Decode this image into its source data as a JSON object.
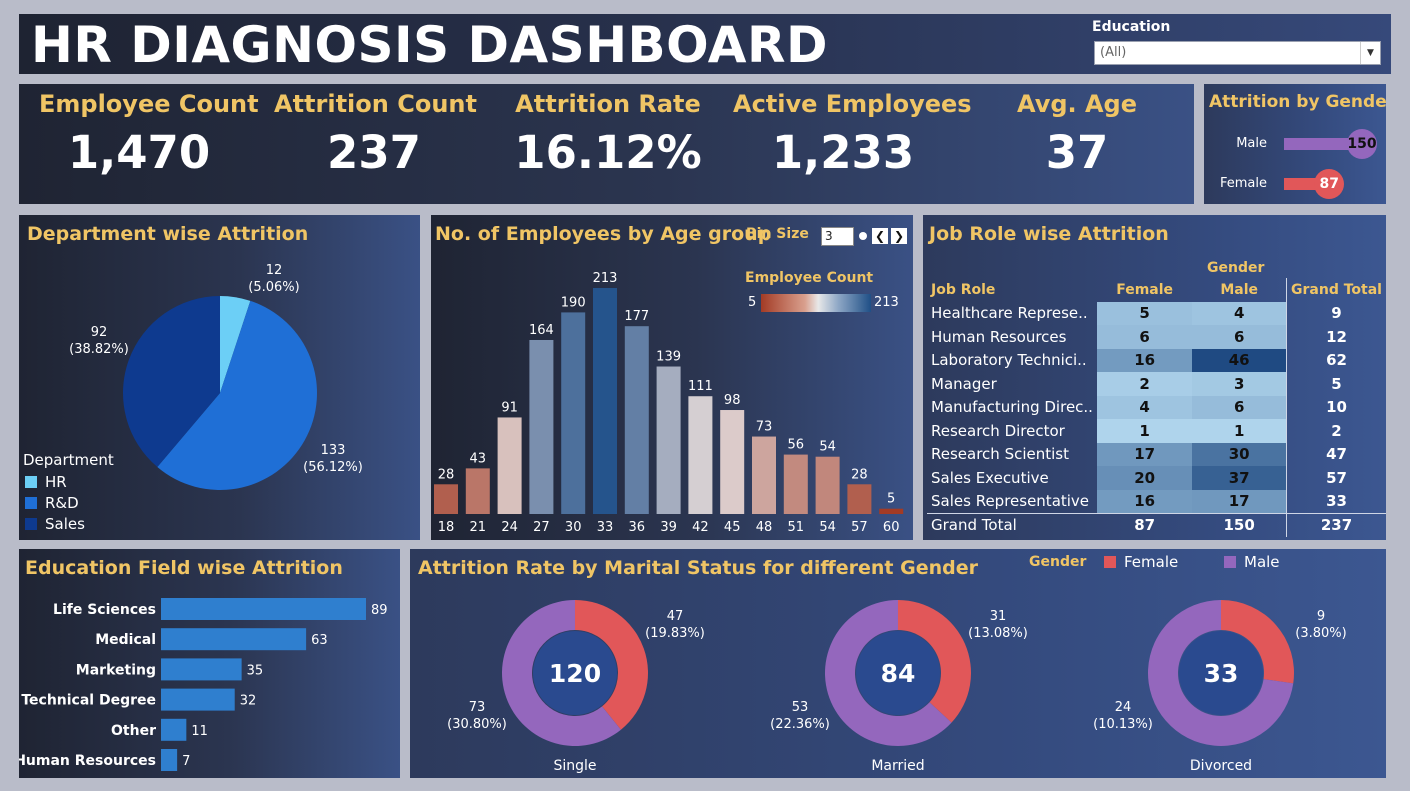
{
  "header": {
    "title": "HR DIAGNOSIS DASHBOARD",
    "filter_label": "Education",
    "filter_value": "(All)"
  },
  "kpis": [
    {
      "label": "Employee Count",
      "value": "1,470"
    },
    {
      "label": "Attrition Count",
      "value": "237"
    },
    {
      "label": "Attrition Rate",
      "value": "16.12%"
    },
    {
      "label": "Active Employees",
      "value": "1,233"
    },
    {
      "label": "Avg. Age",
      "value": "37"
    }
  ],
  "colors": {
    "gold": "#f0c565",
    "female": "#e15759",
    "male": "#9467bd",
    "hr": "#6ccff6",
    "rnd": "#1f6fd6",
    "sales": "#0e3a8f",
    "edu_bar": "#2f7fcf"
  },
  "chart_data": [
    {
      "type": "bar",
      "id": "attrition_by_gender",
      "title": "Attrition by Gender",
      "categories": [
        "Male",
        "Female"
      ],
      "values": [
        150,
        87
      ],
      "labels": [
        "150",
        "87"
      ]
    },
    {
      "type": "pie",
      "id": "department_attrition",
      "title": "Department wise Attrition",
      "legend_title": "Department",
      "categories": [
        "HR",
        "R&D",
        "Sales"
      ],
      "values": [
        12,
        133,
        92
      ],
      "value_labels": [
        "12",
        "133",
        "92"
      ],
      "percent_labels": [
        "(5.06%)",
        "(56.12%)",
        "(38.82%)"
      ],
      "legend_placement": "bottom-left"
    },
    {
      "type": "bar",
      "id": "age_group",
      "title": "No. of Employees by Age group",
      "bin_label": "Bin Size",
      "bin_value": "3",
      "color_legend_title": "Employee Count",
      "color_range": [
        5,
        213
      ],
      "color_range_labels": [
        "5",
        "213"
      ],
      "categories": [
        "18",
        "21",
        "24",
        "27",
        "30",
        "33",
        "36",
        "39",
        "42",
        "45",
        "48",
        "51",
        "54",
        "57",
        "60"
      ],
      "values": [
        28,
        43,
        91,
        164,
        190,
        213,
        177,
        139,
        111,
        98,
        73,
        56,
        54,
        28,
        5
      ],
      "value_labels": [
        "28",
        "43",
        "91",
        "164",
        "190",
        "213",
        "177",
        "139",
        "111",
        "98",
        "73",
        "56",
        "54",
        "28",
        "5"
      ],
      "ylim": [
        0,
        213
      ]
    },
    {
      "type": "table",
      "id": "job_role_attrition",
      "title": "Job Role wise Attrition",
      "group_header": "Gender",
      "columns": [
        "Job Role",
        "Female",
        "Male",
        "Grand Total"
      ],
      "rows": [
        {
          "role": "Healthcare Represe..",
          "female": 5,
          "male": 4,
          "total": 9,
          "female_label": "5",
          "male_label": "4",
          "total_label": "9"
        },
        {
          "role": "Human Resources",
          "female": 6,
          "male": 6,
          "total": 12,
          "female_label": "6",
          "male_label": "6",
          "total_label": "12"
        },
        {
          "role": "Laboratory Technici..",
          "female": 16,
          "male": 46,
          "total": 62,
          "female_label": "16",
          "male_label": "46",
          "total_label": "62"
        },
        {
          "role": "Manager",
          "female": 2,
          "male": 3,
          "total": 5,
          "female_label": "2",
          "male_label": "3",
          "total_label": "5"
        },
        {
          "role": "Manufacturing Direc..",
          "female": 4,
          "male": 6,
          "total": 10,
          "female_label": "4",
          "male_label": "6",
          "total_label": "10"
        },
        {
          "role": "Research Director",
          "female": 1,
          "male": 1,
          "total": 2,
          "female_label": "1",
          "male_label": "1",
          "total_label": "2"
        },
        {
          "role": "Research Scientist",
          "female": 17,
          "male": 30,
          "total": 47,
          "female_label": "17",
          "male_label": "30",
          "total_label": "47"
        },
        {
          "role": "Sales Executive",
          "female": 20,
          "male": 37,
          "total": 57,
          "female_label": "20",
          "male_label": "37",
          "total_label": "57"
        },
        {
          "role": "Sales Representative",
          "female": 16,
          "male": 17,
          "total": 33,
          "female_label": "16",
          "male_label": "17",
          "total_label": "33"
        }
      ],
      "grand_total": {
        "role": "Grand Total",
        "female": "87",
        "male": "150",
        "total": "237"
      }
    },
    {
      "type": "bar",
      "id": "education_field",
      "title": "Education Field wise Attrition",
      "categories": [
        "Life Sciences",
        "Medical",
        "Marketing",
        "Technical Degree",
        "Other",
        "Human Resources"
      ],
      "values": [
        89,
        63,
        35,
        32,
        11,
        7
      ],
      "value_labels": [
        "89",
        "63",
        "35",
        "32",
        "11",
        "7"
      ]
    },
    {
      "type": "pie",
      "id": "marital_status",
      "title": "Attrition Rate by Marital Status for different Gender",
      "legend_title": "Gender",
      "legend": [
        "Female",
        "Male"
      ],
      "groups": [
        {
          "name": "Single",
          "total": "120",
          "female": 47,
          "male": 73,
          "female_label": "47",
          "female_pct": "(19.83%)",
          "male_label": "73",
          "male_pct": "(30.80%)"
        },
        {
          "name": "Married",
          "total": "84",
          "female": 31,
          "male": 53,
          "female_label": "31",
          "female_pct": "(13.08%)",
          "male_label": "53",
          "male_pct": "(22.36%)"
        },
        {
          "name": "Divorced",
          "total": "33",
          "female": 9,
          "male": 24,
          "female_label": "9",
          "female_pct": "(3.80%)",
          "male_label": "24",
          "male_pct": "(10.13%)"
        }
      ]
    }
  ]
}
